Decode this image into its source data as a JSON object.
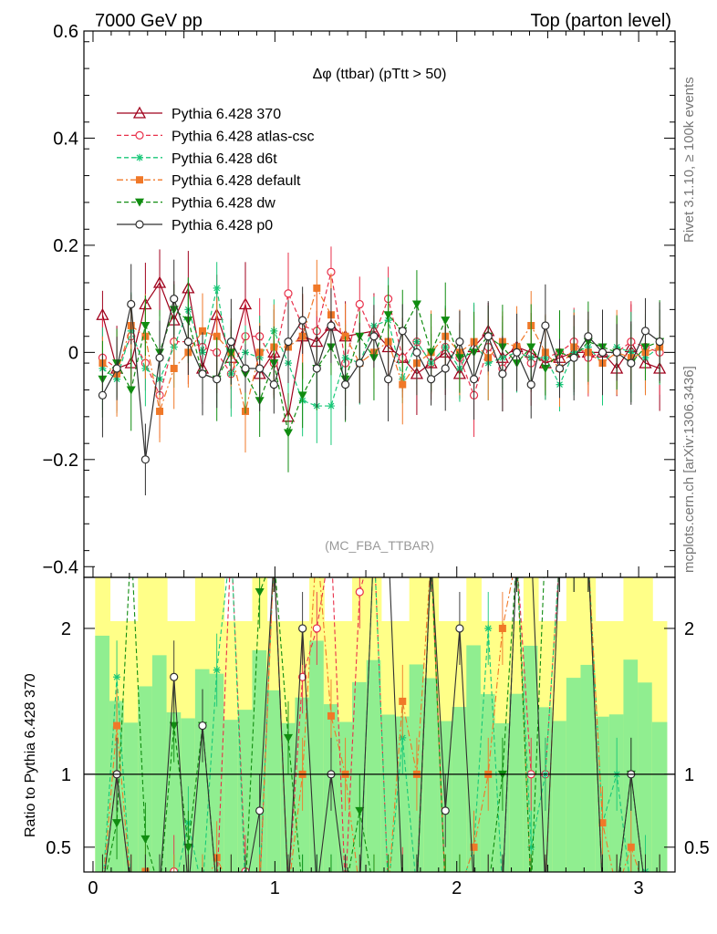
{
  "header": {
    "left": "7000 GeV pp",
    "right": "Top (parton level)"
  },
  "side": {
    "rivet": "Rivet 3.1.10, ≥ 100k events",
    "mcplots": "mcplots.cern.ch [arXiv:1306.3436]"
  },
  "chart_data": [
    {
      "type": "line",
      "title": "Δφ (ttbar) (pTtt > 50)",
      "watermark": "(MC_FBA_TTBAR)",
      "xlim": [
        -0.05,
        3.2
      ],
      "ylim": [
        -0.42,
        0.6
      ],
      "yticks": [
        -0.4,
        -0.2,
        0,
        0.2,
        0.4,
        0.6
      ],
      "ytick_labels": [
        "−0.4",
        "−0.2",
        "0",
        "0.2",
        "0.4",
        "0.6"
      ],
      "legend_position": "top-left",
      "series": [
        {
          "name": "Pythia 6.428 370",
          "color": "#a0001c",
          "marker": "triangle-open",
          "linestyle": "solid",
          "x": [
            0.0524,
            0.1309,
            0.2094,
            0.288,
            0.3665,
            0.4451,
            0.5236,
            0.6021,
            0.6807,
            0.7592,
            0.8378,
            0.9163,
            0.9948,
            1.0734,
            1.1519,
            1.2305,
            1.309,
            1.3875,
            1.5446,
            1.6232,
            1.7017,
            1.7802,
            1.8588,
            1.9373,
            2.0159,
            2.0944,
            2.1729,
            2.2515,
            2.33,
            2.4086,
            2.4871,
            2.5656,
            2.6442,
            2.7227,
            2.8013,
            2.8798,
            2.9583,
            3.0369,
            3.1154
          ],
          "y": [
            0.07,
            -0.03,
            -0.02,
            0.09,
            0.13,
            0.06,
            0.12,
            -0.03,
            0.07,
            -0.01,
            0.09,
            -0.04,
            0.0,
            -0.12,
            0.03,
            0.02,
            0.05,
            0.03,
            0.04,
            0.01,
            -0.01,
            -0.04,
            -0.02,
            0.0,
            -0.04,
            0.01,
            0.04,
            -0.01,
            0.01,
            0.0,
            -0.02,
            -0.01,
            0.0,
            0.0,
            0.0,
            -0.03,
            0.01,
            -0.02,
            -0.03
          ]
        },
        {
          "name": "Pythia 6.428 atlas-csc",
          "color": "#e8304a",
          "marker": "circle-open",
          "linestyle": "dashed",
          "x": [
            0.0524,
            0.1309,
            0.2094,
            0.288,
            0.3665,
            0.4451,
            0.5236,
            0.6021,
            0.6807,
            0.7592,
            0.8378,
            0.9163,
            0.9948,
            1.0734,
            1.1519,
            1.2305,
            1.309,
            1.3875,
            1.4661,
            1.5446,
            1.6232,
            1.7017,
            1.7802,
            1.8588,
            1.9373,
            2.0159,
            2.0944,
            2.1729,
            2.2515,
            2.33,
            2.4086,
            2.4871,
            2.5656,
            2.6442,
            2.7227,
            2.8013,
            2.8798,
            2.9583,
            3.0369,
            3.1154
          ],
          "y": [
            -0.01,
            -0.03,
            0.03,
            -0.02,
            -0.08,
            0.02,
            0.02,
            0.01,
            0.0,
            -0.04,
            0.03,
            0.03,
            -0.02,
            0.11,
            0.05,
            0.04,
            0.15,
            -0.02,
            0.09,
            0.03,
            0.1,
            -0.01,
            0.02,
            -0.02,
            0.01,
            -0.01,
            -0.08,
            0.01,
            -0.03,
            0.01,
            -0.02,
            -0.01,
            0.0,
            0.02,
            -0.01,
            0.0,
            0.0,
            0.02,
            0.01,
            0.0
          ]
        },
        {
          "name": "Pythia 6.428 d6t",
          "color": "#18c878",
          "marker": "star",
          "linestyle": "dashed",
          "x": [
            0.0524,
            0.1309,
            0.2094,
            0.288,
            0.3665,
            0.4451,
            0.5236,
            0.6021,
            0.6807,
            0.7592,
            0.8378,
            0.9163,
            0.9948,
            1.0734,
            1.1519,
            1.2305,
            1.309,
            1.3875,
            1.4661,
            1.5446,
            1.6232,
            1.7017,
            1.7802,
            1.8588,
            1.9373,
            2.0159,
            2.0944,
            2.1729,
            2.2515,
            2.33,
            2.4086,
            2.4871,
            2.5656,
            2.6442,
            2.7227,
            2.8013,
            2.8798,
            2.9583,
            3.0369,
            3.1154
          ],
          "y": [
            -0.03,
            -0.05,
            0.04,
            -0.03,
            -0.05,
            0.01,
            0.08,
            0.0,
            0.12,
            -0.04,
            0.0,
            -0.01,
            0.04,
            -0.02,
            -0.09,
            -0.1,
            -0.1,
            -0.01,
            -0.02,
            0.05,
            0.06,
            -0.05,
            0.02,
            -0.02,
            0.01,
            -0.03,
            0.02,
            -0.02,
            -0.01,
            0.0,
            -0.01,
            -0.01,
            -0.06,
            0.0,
            0.01,
            -0.02,
            0.01,
            0.0,
            -0.01,
            0.01
          ]
        },
        {
          "name": "Pythia 6.428 default",
          "color": "#f07828",
          "marker": "square-filled",
          "linestyle": "dashdot",
          "x": [
            0.0524,
            0.1309,
            0.2094,
            0.288,
            0.3665,
            0.4451,
            0.5236,
            0.6021,
            0.6807,
            0.7592,
            0.8378,
            0.9163,
            0.9948,
            1.0734,
            1.1519,
            1.2305,
            1.309,
            1.3875,
            1.4661,
            1.5446,
            1.6232,
            1.7017,
            1.7802,
            1.8588,
            1.9373,
            2.0159,
            2.0944,
            2.1729,
            2.2515,
            2.33,
            2.4086,
            2.4871,
            2.5656,
            2.6442,
            2.7227,
            2.8013,
            2.8798,
            2.9583,
            3.0369,
            3.1154
          ],
          "y": [
            -0.02,
            -0.04,
            0.05,
            0.03,
            -0.11,
            -0.03,
            0.0,
            0.04,
            0.03,
            0.0,
            -0.11,
            0.0,
            0.01,
            0.01,
            0.03,
            0.12,
            0.07,
            0.03,
            -0.02,
            0.0,
            0.02,
            -0.06,
            -0.02,
            0.0,
            0.03,
            0.0,
            0.02,
            -0.01,
            0.02,
            0.01,
            0.05,
            0.0,
            -0.03,
            0.01,
            0.0,
            -0.02,
            0.0,
            -0.01,
            0.0,
            0.01
          ]
        },
        {
          "name": "Pythia 6.428 dw",
          "color": "#108c10",
          "marker": "triangle-down-filled",
          "linestyle": "dashed",
          "x": [
            0.0524,
            0.1309,
            0.2094,
            0.288,
            0.3665,
            0.4451,
            0.5236,
            0.6021,
            0.6807,
            0.7592,
            0.8378,
            0.9163,
            0.9948,
            1.0734,
            1.1519,
            1.2305,
            1.309,
            1.3875,
            1.4661,
            1.5446,
            1.6232,
            1.7017,
            1.7802,
            1.8588,
            1.9373,
            2.0159,
            2.0944,
            2.1729,
            2.2515,
            2.33,
            2.4086,
            2.4871,
            2.5656,
            2.6442,
            2.7227,
            2.8013,
            2.8798,
            2.9583,
            3.0369,
            3.1154
          ],
          "y": [
            -0.05,
            -0.02,
            -0.07,
            0.05,
            0.0,
            0.08,
            0.06,
            -0.04,
            -0.05,
            0.0,
            -0.04,
            -0.09,
            -0.02,
            -0.15,
            -0.08,
            -0.03,
            0.01,
            -0.05,
            0.03,
            -0.01,
            0.07,
            0.04,
            0.09,
            0.0,
            0.06,
            -0.01,
            0.0,
            0.03,
            0.01,
            -0.02,
            0.01,
            -0.03,
            0.0,
            -0.01,
            0.02,
            0.01,
            0.0,
            -0.02,
            0.01,
            0.02
          ]
        },
        {
          "name": "Pythia 6.428 p0",
          "color": "#303030",
          "marker": "circle-open",
          "linestyle": "solid",
          "x": [
            0.0524,
            0.1309,
            0.2094,
            0.288,
            0.3665,
            0.4451,
            0.5236,
            0.6021,
            0.6807,
            0.7592,
            0.8378,
            0.9163,
            0.9948,
            1.0734,
            1.1519,
            1.2305,
            1.309,
            1.3875,
            1.4661,
            1.5446,
            1.6232,
            1.7017,
            1.7802,
            1.8588,
            1.9373,
            2.0159,
            2.0944,
            2.1729,
            2.2515,
            2.33,
            2.4086,
            2.4871,
            2.5656,
            2.6442,
            2.7227,
            2.8013,
            2.8798,
            2.9583,
            3.0369,
            3.1154
          ],
          "y": [
            -0.08,
            -0.03,
            0.09,
            -0.2,
            -0.01,
            0.1,
            0.02,
            -0.04,
            -0.05,
            0.02,
            -0.03,
            -0.03,
            -0.06,
            0.02,
            0.06,
            -0.03,
            0.05,
            -0.06,
            -0.02,
            0.03,
            -0.05,
            0.04,
            0.0,
            -0.05,
            -0.03,
            0.02,
            -0.05,
            0.03,
            -0.04,
            0.0,
            -0.06,
            0.05,
            -0.03,
            -0.01,
            0.03,
            0.0,
            0.0,
            -0.02,
            0.04,
            0.02
          ]
        }
      ]
    },
    {
      "type": "line",
      "ylabel": "Ratio to Pythia 6.428 370",
      "xlim": [
        -0.05,
        3.2
      ],
      "ylim": [
        0.33,
        2.35
      ],
      "xticks": [
        0,
        1,
        2,
        3
      ],
      "xtick_labels": [
        "0",
        "1",
        "2",
        "3"
      ],
      "yticks": [
        0.5,
        1,
        2
      ],
      "ytick_labels": [
        "0.5",
        "1",
        "2"
      ],
      "reference_line": 1,
      "band_colors": {
        "inner": "#90ee90",
        "outer": "#ffff88"
      }
    }
  ]
}
